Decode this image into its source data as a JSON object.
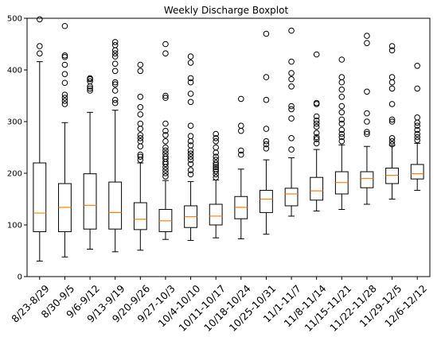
{
  "chart_data": {
    "type": "boxplot",
    "title": "Weekly Discharge Boxplot",
    "xlabel": "",
    "ylabel": "",
    "ylim": [
      0,
      500
    ],
    "yticks": [
      0,
      100,
      200,
      300,
      400,
      500
    ],
    "grid": false,
    "colors": {
      "box": "#000000",
      "median": "#ff7f0e",
      "outlier": "#000000",
      "background": "#ffffff"
    },
    "categories": [
      "8/23-8/29",
      "8/30-9/5",
      "9/6-9/12",
      "9/13-9/19",
      "9/20-9/26",
      "9/27-10/3",
      "10/4-10/10",
      "10/11-10/17",
      "10/18-10/24",
      "10/25-10/31",
      "11/1-11/7",
      "11/8-11/14",
      "11/15-11/21",
      "11/22-11/28",
      "11/29-12/5",
      "12/6-12/12"
    ],
    "boxes": [
      {
        "whislo": 30,
        "q1": 87,
        "med": 123,
        "q3": 220,
        "whishi": 416,
        "fliers": [
          432,
          446,
          498
        ]
      },
      {
        "whislo": 38,
        "q1": 87,
        "med": 134,
        "q3": 180,
        "whishi": 298,
        "fliers": [
          334,
          340,
          346,
          352,
          375,
          392,
          410,
          425,
          428,
          485
        ]
      },
      {
        "whislo": 53,
        "q1": 92,
        "med": 138,
        "q3": 199,
        "whishi": 318,
        "fliers": [
          360,
          364,
          368,
          378,
          382,
          384
        ]
      },
      {
        "whislo": 48,
        "q1": 92,
        "med": 124,
        "q3": 183,
        "whishi": 322,
        "fliers": [
          336,
          342,
          360,
          372,
          376,
          398,
          412,
          426,
          432,
          438,
          448,
          454
        ]
      },
      {
        "whislo": 51,
        "q1": 91,
        "med": 111,
        "q3": 143,
        "whishi": 220,
        "fliers": [
          226,
          232,
          236,
          252,
          262,
          268,
          274,
          286,
          296,
          314,
          328,
          348,
          398,
          410
        ]
      },
      {
        "whislo": 72,
        "q1": 87,
        "med": 108,
        "q3": 130,
        "whishi": 186,
        "fliers": [
          194,
          200,
          206,
          212,
          218,
          222,
          228,
          232,
          238,
          244,
          250,
          262,
          274,
          282,
          296,
          346,
          350,
          432,
          450
        ]
      },
      {
        "whislo": 70,
        "q1": 95,
        "med": 116,
        "q3": 137,
        "whishi": 184,
        "fliers": [
          198,
          206,
          218,
          226,
          232,
          238,
          244,
          254,
          262,
          272,
          292,
          338,
          354,
          376,
          384,
          414,
          426
        ]
      },
      {
        "whislo": 75,
        "q1": 100,
        "med": 117,
        "q3": 140,
        "whishi": 187,
        "fliers": [
          192,
          198,
          204,
          208,
          212,
          216,
          220,
          226,
          232,
          240,
          250,
          262,
          268,
          276
        ]
      },
      {
        "whislo": 73,
        "q1": 112,
        "med": 134,
        "q3": 155,
        "whishi": 208,
        "fliers": [
          236,
          244,
          282,
          292,
          344
        ]
      },
      {
        "whislo": 82,
        "q1": 124,
        "med": 150,
        "q3": 167,
        "whishi": 226,
        "fliers": [
          248,
          256,
          262,
          286,
          342,
          386,
          470
        ]
      },
      {
        "whislo": 117,
        "q1": 137,
        "med": 160,
        "q3": 171,
        "whishi": 230,
        "fliers": [
          246,
          268,
          306,
          324,
          330,
          368,
          382,
          394,
          416,
          476
        ]
      },
      {
        "whislo": 127,
        "q1": 148,
        "med": 166,
        "q3": 192,
        "whishi": 246,
        "fliers": [
          258,
          266,
          270,
          278,
          290,
          296,
          302,
          310,
          334,
          336,
          430
        ]
      },
      {
        "whislo": 130,
        "q1": 160,
        "med": 182,
        "q3": 203,
        "whishi": 255,
        "fliers": [
          262,
          270,
          276,
          284,
          296,
          304,
          318,
          330,
          348,
          362,
          376,
          386,
          420
        ]
      },
      {
        "whislo": 140,
        "q1": 172,
        "med": 190,
        "q3": 203,
        "whishi": 252,
        "fliers": [
          276,
          280,
          300,
          316,
          358,
          452,
          466
        ]
      },
      {
        "whislo": 150,
        "q1": 180,
        "med": 196,
        "q3": 210,
        "whishi": 254,
        "fliers": [
          256,
          262,
          268,
          300,
          304,
          334,
          364,
          376,
          386,
          438,
          446
        ]
      },
      {
        "whislo": 167,
        "q1": 189,
        "med": 199,
        "q3": 217,
        "whishi": 258,
        "fliers": [
          264,
          270,
          276,
          284,
          292,
          298,
          308,
          364,
          408
        ]
      }
    ]
  }
}
